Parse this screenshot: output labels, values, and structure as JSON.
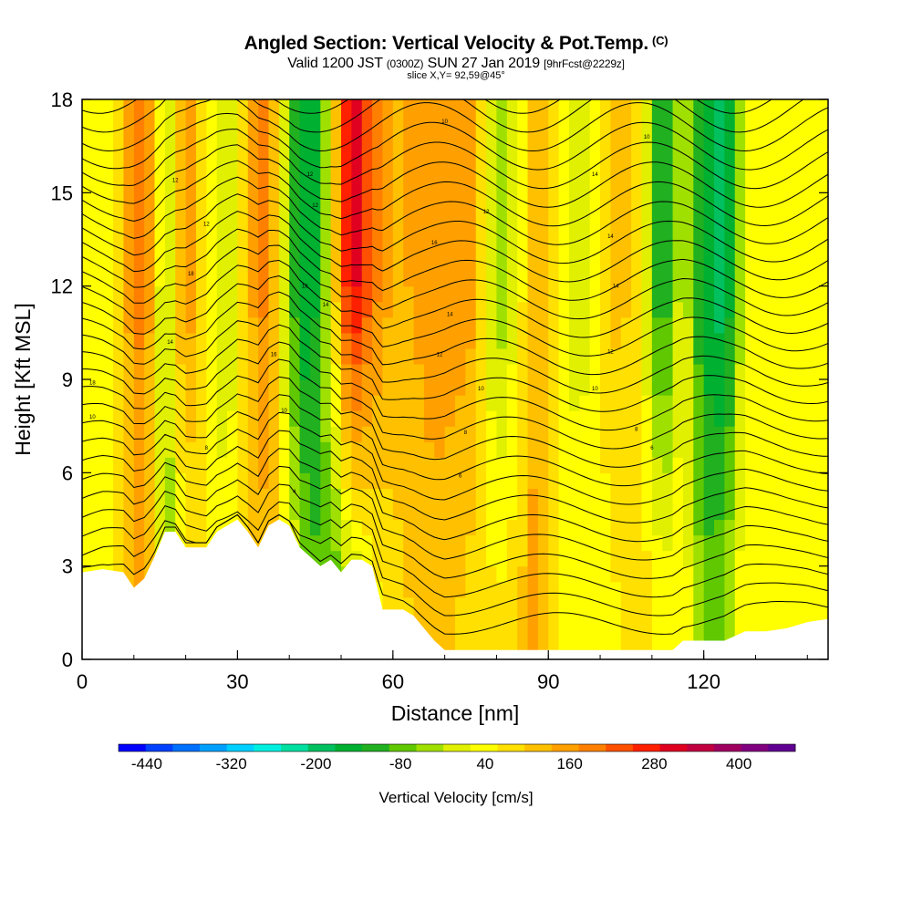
{
  "header": {
    "title": "Angled Section: Vertical Velocity & Pot.Temp.",
    "title_unit": "(C)",
    "valid_prefix": "Valid 1200 JST",
    "valid_utc": "(0300Z)",
    "valid_date": "SUN 27 Jan 2019",
    "valid_fcst": "[9hrFcst@2229z]",
    "slice": "slice X,Y= 92,59@45°"
  },
  "chart_data": {
    "type": "heatmap",
    "title": "Angled Section: Vertical Velocity & Pot.Temp.",
    "xlabel": "Distance [nm]",
    "ylabel": "Height [Kft MSL]",
    "xlim": [
      0,
      144
    ],
    "ylim": [
      0,
      18
    ],
    "x_ticks": [
      0,
      30,
      60,
      90,
      120
    ],
    "y_ticks": [
      0,
      3,
      6,
      9,
      12,
      15,
      18
    ],
    "grid": false,
    "colorbar": {
      "label": "Vertical Velocity [cm/s]",
      "placement": "bottom",
      "tick_labels": [
        "-440",
        "-320",
        "-200",
        "-80",
        "40",
        "160",
        "280",
        "400"
      ],
      "tick_values": [
        -440,
        -320,
        -200,
        -80,
        40,
        160,
        280,
        400
      ],
      "range": [
        -480,
        480
      ],
      "colors": [
        "#0000ff",
        "#0040ff",
        "#0070ff",
        "#00a0ff",
        "#00d0ff",
        "#00f0e0",
        "#00e0a0",
        "#00c060",
        "#00b030",
        "#20b020",
        "#60c800",
        "#a0e000",
        "#e0f000",
        "#ffff00",
        "#ffe000",
        "#ffc000",
        "#ffa000",
        "#ff8000",
        "#ff5000",
        "#ff2000",
        "#e00020",
        "#c00040",
        "#a00060",
        "#800080",
        "#600090"
      ]
    },
    "columns": {
      "x": [
        0,
        4,
        8,
        12,
        16,
        20,
        24,
        28,
        32,
        36,
        40,
        44,
        48,
        52,
        56,
        60,
        64,
        68,
        72,
        76,
        80,
        84,
        88,
        92,
        96,
        100,
        104,
        108,
        112,
        116,
        120,
        124,
        128,
        132,
        136,
        140,
        144
      ],
      "w_upper": [
        60,
        20,
        120,
        200,
        -40,
        180,
        60,
        -40,
        120,
        200,
        -80,
        -200,
        40,
        320,
        200,
        120,
        140,
        160,
        160,
        140,
        -60,
        20,
        160,
        40,
        -20,
        60,
        120,
        40,
        -160,
        20,
        -160,
        -200,
        20,
        60,
        20,
        40,
        60
      ],
      "w_lower": [
        60,
        40,
        80,
        160,
        -80,
        40,
        60,
        40,
        80,
        120,
        40,
        -80,
        -100,
        -40,
        40,
        80,
        100,
        120,
        100,
        80,
        60,
        80,
        160,
        40,
        60,
        40,
        60,
        80,
        40,
        60,
        -80,
        -60,
        60,
        40,
        20,
        40,
        40
      ]
    },
    "terrain": {
      "x": [
        0,
        4,
        8,
        10,
        12,
        14,
        16,
        18,
        20,
        22,
        24,
        26,
        28,
        30,
        32,
        34,
        36,
        38,
        40,
        42,
        44,
        46,
        48,
        50,
        52,
        54,
        56,
        58,
        60,
        62,
        64,
        66,
        68,
        70,
        72,
        74,
        76,
        80,
        90,
        100,
        110,
        114,
        116,
        120,
        122,
        124,
        128,
        132,
        136,
        140,
        144
      ],
      "kft": [
        2.8,
        2.9,
        2.8,
        2.3,
        2.6,
        3.3,
        4.1,
        4.1,
        3.6,
        3.6,
        3.6,
        4.1,
        4.3,
        4.5,
        4.1,
        3.6,
        4.3,
        4.5,
        4.3,
        3.6,
        3.3,
        3.0,
        3.2,
        2.8,
        3.2,
        3.2,
        3.0,
        1.6,
        1.6,
        1.6,
        1.4,
        1.0,
        0.6,
        0.3,
        0.3,
        0.3,
        0.3,
        0.3,
        0.3,
        0.3,
        0.3,
        0.3,
        0.6,
        0.6,
        0.6,
        0.6,
        0.9,
        0.9,
        1.0,
        1.2,
        1.3
      ]
    },
    "theta_contour_labels": [
      {
        "x": 2,
        "y": 7.8,
        "text": "10"
      },
      {
        "x": 2,
        "y": 8.9,
        "text": "18"
      },
      {
        "x": 17,
        "y": 10.2,
        "text": "14"
      },
      {
        "x": 21,
        "y": 12.4,
        "text": "18"
      },
      {
        "x": 24,
        "y": 14.0,
        "text": "12"
      },
      {
        "x": 18,
        "y": 15.4,
        "text": "12"
      },
      {
        "x": 24,
        "y": 6.8,
        "text": "8"
      },
      {
        "x": 37,
        "y": 9.8,
        "text": "16"
      },
      {
        "x": 39,
        "y": 8.0,
        "text": "10"
      },
      {
        "x": 41,
        "y": 5.4,
        "text": "4"
      },
      {
        "x": 43,
        "y": 12.0,
        "text": "18"
      },
      {
        "x": 45,
        "y": 14.6,
        "text": "12"
      },
      {
        "x": 47,
        "y": 11.4,
        "text": "14"
      },
      {
        "x": 44,
        "y": 15.6,
        "text": "12"
      },
      {
        "x": 70,
        "y": 17.3,
        "text": "10"
      },
      {
        "x": 68,
        "y": 13.4,
        "text": "16"
      },
      {
        "x": 71,
        "y": 11.1,
        "text": "14"
      },
      {
        "x": 69,
        "y": 9.8,
        "text": "12"
      },
      {
        "x": 78,
        "y": 14.4,
        "text": "12"
      },
      {
        "x": 77,
        "y": 8.7,
        "text": "10"
      },
      {
        "x": 74,
        "y": 7.3,
        "text": "8"
      },
      {
        "x": 73,
        "y": 5.9,
        "text": "6"
      },
      {
        "x": 99,
        "y": 15.6,
        "text": "14"
      },
      {
        "x": 102,
        "y": 13.6,
        "text": "14"
      },
      {
        "x": 103,
        "y": 12.0,
        "text": "14"
      },
      {
        "x": 102,
        "y": 9.9,
        "text": "12"
      },
      {
        "x": 99,
        "y": 8.7,
        "text": "10"
      },
      {
        "x": 107,
        "y": 7.4,
        "text": "8"
      },
      {
        "x": 110,
        "y": 6.8,
        "text": "6"
      },
      {
        "x": 109,
        "y": 16.8,
        "text": "10"
      }
    ]
  }
}
